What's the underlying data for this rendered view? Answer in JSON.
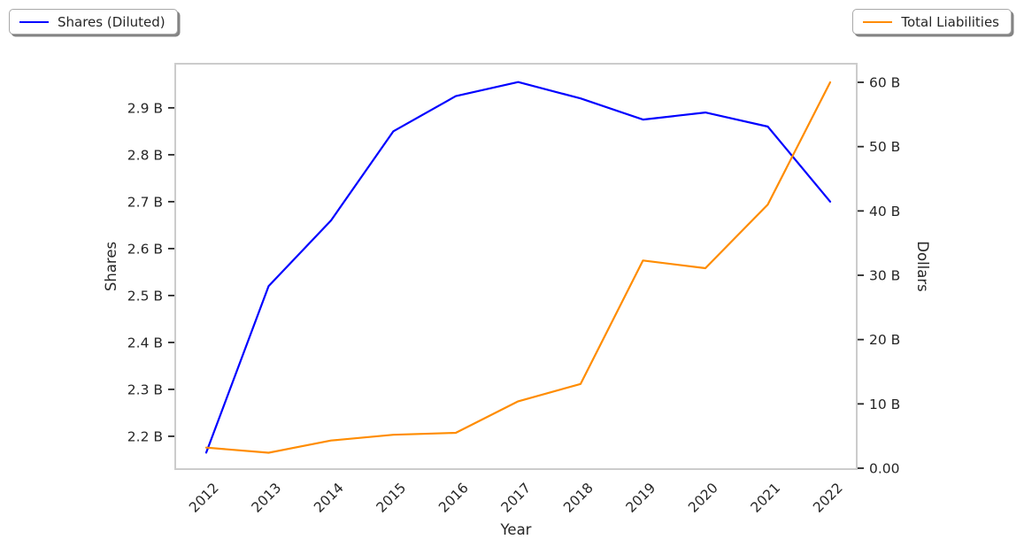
{
  "figure": {
    "background": "#ffffff",
    "plot_border_color": "#cccccc",
    "text_color": "#262626"
  },
  "legends": {
    "shares": {
      "label": "Shares (Diluted)",
      "color": "#0000ff"
    },
    "liabilities": {
      "label": "Total Liabilities",
      "color": "#ff8c00"
    }
  },
  "axes": {
    "x_label": "Year",
    "y_left_label": "Shares",
    "y_right_label": "Dollars"
  },
  "chart_data": {
    "type": "line",
    "title": "",
    "xlabel": "Year",
    "ylabel_left": "Shares",
    "ylabel_right": "Dollars",
    "grid": false,
    "legend_position": "outside top-left (Shares) and outside top-right (Total Liabilities)",
    "x": [
      2012,
      2013,
      2014,
      2015,
      2016,
      2017,
      2018,
      2019,
      2020,
      2021,
      2022
    ],
    "series": [
      {
        "name": "Shares (Diluted)",
        "axis": "left",
        "color": "#0000ff",
        "unit": "B shares",
        "values": [
          2.165,
          2.52,
          2.66,
          2.85,
          2.925,
          2.955,
          2.92,
          2.875,
          2.89,
          2.86,
          2.7
        ]
      },
      {
        "name": "Total Liabilities",
        "axis": "right",
        "color": "#ff8c00",
        "unit": "B dollars",
        "values": [
          3.2,
          2.4,
          4.3,
          5.2,
          5.5,
          10.4,
          13.1,
          32.3,
          31.1,
          41.0,
          60.0
        ]
      }
    ],
    "ylim_left": [
      2.13,
      2.994
    ],
    "ylim_right": [
      -0.14,
      62.89
    ],
    "y_left_ticks": [
      {
        "label": "2.9 B",
        "value": 2.9
      },
      {
        "label": "2.8 B",
        "value": 2.8
      },
      {
        "label": "2.7 B",
        "value": 2.7
      },
      {
        "label": "2.6 B",
        "value": 2.6
      },
      {
        "label": "2.5 B",
        "value": 2.5
      },
      {
        "label": "2.4 B",
        "value": 2.4
      },
      {
        "label": "2.3 B",
        "value": 2.3
      },
      {
        "label": "2.2 B",
        "value": 2.2
      }
    ],
    "y_right_ticks": [
      {
        "label": "60 B",
        "value": 60
      },
      {
        "label": "50 B",
        "value": 50
      },
      {
        "label": "40 B",
        "value": 40
      },
      {
        "label": "30 B",
        "value": 30
      },
      {
        "label": "20 B",
        "value": 20
      },
      {
        "label": "10 B",
        "value": 10
      },
      {
        "label": "0.00",
        "value": 0
      }
    ],
    "x_tick_labels": [
      "2012",
      "2013",
      "2014",
      "2015",
      "2016",
      "2017",
      "2018",
      "2019",
      "2020",
      "2021",
      "2022"
    ]
  }
}
